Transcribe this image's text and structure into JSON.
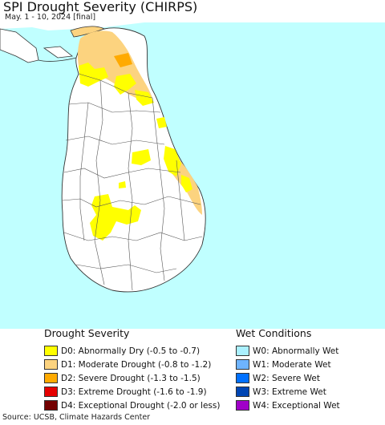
{
  "header": {
    "title": "SPI Drought Severity (CHIRPS)",
    "subtitle": "May. 1 - 10, 2024 [final]"
  },
  "map": {
    "colors": {
      "ocean": "#c0ffff",
      "land": "#ffffff",
      "border": "#333333"
    }
  },
  "legend": {
    "drought": {
      "title": "Drought Severity",
      "items": [
        {
          "label": "D0: Abnormally Dry (-0.5 to -0.7)",
          "color": "#ffff00"
        },
        {
          "label": "D1: Moderate Drought (-0.8 to -1.2)",
          "color": "#fcd37f"
        },
        {
          "label": "D2: Severe Drought (-1.3 to -1.5)",
          "color": "#ffaa00"
        },
        {
          "label": "D3: Extreme Drought (-1.6 to -1.9)",
          "color": "#e60000"
        },
        {
          "label": "D4: Exceptional Drought (-2.0 or less)",
          "color": "#730000"
        }
      ]
    },
    "wet": {
      "title": "Wet Conditions",
      "items": [
        {
          "label": "W0: Abnormally Wet",
          "color": "#aaf0ff"
        },
        {
          "label": "W1: Moderate Wet",
          "color": "#6eb4ff"
        },
        {
          "label": "W2: Severe Wet",
          "color": "#0070ff"
        },
        {
          "label": "W3: Extreme Wet",
          "color": "#0046b4"
        },
        {
          "label": "W4: Exceptional Wet",
          "color": "#a000c8"
        }
      ]
    }
  },
  "footer": {
    "source": "Source: UCSB, Climate Hazards Center"
  }
}
